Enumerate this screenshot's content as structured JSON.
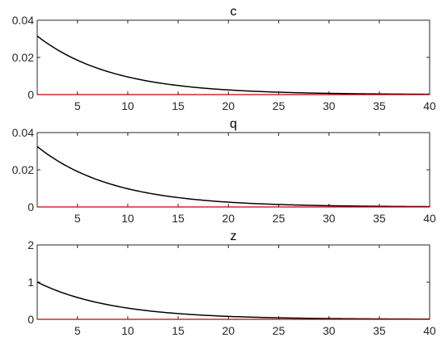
{
  "chart_data": [
    {
      "type": "line",
      "title": "c",
      "xlabel": "",
      "ylabel": "",
      "xlim": [
        1,
        40
      ],
      "ylim": [
        0,
        0.04
      ],
      "xticks": [
        5,
        10,
        15,
        20,
        25,
        30,
        35,
        40
      ],
      "yticks": [
        0,
        0.02,
        0.04
      ],
      "ytick_labels": [
        "0",
        "0.02",
        "0.04"
      ],
      "grid": false,
      "series": [
        {
          "color": "#000000",
          "function": "exp_decay",
          "x": [
            1,
            40
          ],
          "y_start": 0.0315,
          "decay_rate": 0.1333
        },
        {
          "color": "#c00000",
          "function": "constant",
          "x": [
            1,
            40
          ],
          "value": 0
        }
      ]
    },
    {
      "type": "line",
      "title": "q",
      "xlabel": "",
      "ylabel": "",
      "xlim": [
        1,
        40
      ],
      "ylim": [
        0,
        0.04
      ],
      "xticks": [
        5,
        10,
        15,
        20,
        25,
        30,
        35,
        40
      ],
      "yticks": [
        0,
        0.02,
        0.04
      ],
      "ytick_labels": [
        "0",
        "0.02",
        "0.04"
      ],
      "grid": false,
      "series": [
        {
          "color": "#000000",
          "function": "exp_decay",
          "x": [
            1,
            40
          ],
          "y_start": 0.0325,
          "decay_rate": 0.1333
        },
        {
          "color": "#c00000",
          "function": "constant",
          "x": [
            1,
            40
          ],
          "value": 0
        }
      ]
    },
    {
      "type": "line",
      "title": "z",
      "xlabel": "",
      "ylabel": "",
      "xlim": [
        1,
        40
      ],
      "ylim": [
        0,
        2
      ],
      "xticks": [
        5,
        10,
        15,
        20,
        25,
        30,
        35,
        40
      ],
      "yticks": [
        0,
        1,
        2
      ],
      "ytick_labels": [
        "0",
        "1",
        "2"
      ],
      "grid": false,
      "series": [
        {
          "color": "#000000",
          "function": "exp_decay",
          "x": [
            1,
            40
          ],
          "y_start": 1.0,
          "decay_rate": 0.1333
        },
        {
          "color": "#c00000",
          "function": "constant",
          "x": [
            1,
            40
          ],
          "value": 0
        }
      ]
    }
  ]
}
